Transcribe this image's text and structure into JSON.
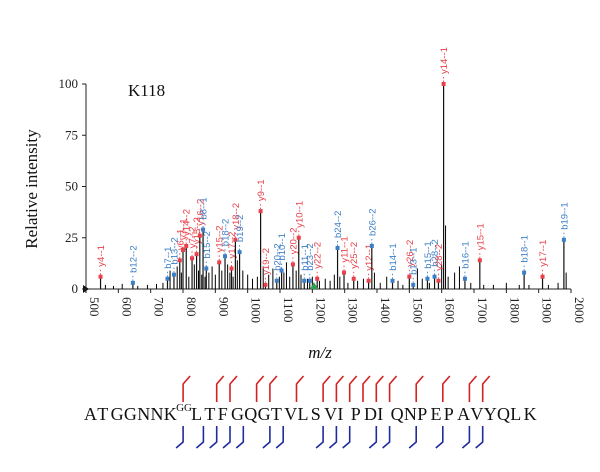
{
  "chart_data": {
    "type": "bar",
    "title": "K118",
    "xlabel": "m/z",
    "ylabel": "Relative intensity",
    "xlim": [
      500,
      2000
    ],
    "ylim": [
      0,
      100
    ],
    "xticks": [
      500,
      600,
      700,
      800,
      900,
      1000,
      1100,
      1200,
      1300,
      1400,
      1500,
      1600,
      1700,
      1800,
      1900,
      2000
    ],
    "yticks": [
      0,
      25,
      50,
      75,
      100
    ],
    "colors": {
      "y_ions": "#e8414b",
      "b_ions": "#3d7fc6",
      "unlabeled": "#000000",
      "precursor": "#2e9e4f",
      "cleavage_n": "#d32222",
      "cleavage_c": "#1f2c9c"
    },
    "peaks": [
      {
        "mz": 545,
        "intensity": 6,
        "label": "y4--1",
        "ion": "y"
      },
      {
        "mz": 645,
        "intensity": 3,
        "label": "b12--2",
        "ion": "b"
      },
      {
        "mz": 752,
        "intensity": 5,
        "label": "b7--1",
        "ion": "b"
      },
      {
        "mz": 772,
        "intensity": 7,
        "label": "b13--2",
        "ion": "b"
      },
      {
        "mz": 790,
        "intensity": 14,
        "label": "y6--1",
        "ion": "y"
      },
      {
        "mz": 800,
        "intensity": 19,
        "label": "y7--1",
        "ion": "y"
      },
      {
        "mz": 810,
        "intensity": 21,
        "label": "y14--2",
        "ion": "y"
      },
      {
        "mz": 828,
        "intensity": 15,
        "label": "y7--2",
        "ion": "y"
      },
      {
        "mz": 842,
        "intensity": 17,
        "label": "y15--2",
        "ion": "y"
      },
      {
        "mz": 852,
        "intensity": 26,
        "label": "y16--2",
        "ion": "y"
      },
      {
        "mz": 862,
        "intensity": 29,
        "label": "b8--1",
        "ion": "b"
      },
      {
        "mz": 872,
        "intensity": 10,
        "label": "b15--2",
        "ion": "b"
      },
      {
        "mz": 912,
        "intensity": 13,
        "label": "y15--2",
        "ion": "y"
      },
      {
        "mz": 930,
        "intensity": 16,
        "label": "b18--2",
        "ion": "b"
      },
      {
        "mz": 950,
        "intensity": 10,
        "label": "y17--2",
        "ion": "y"
      },
      {
        "mz": 962,
        "intensity": 24,
        "label": "y18--2",
        "ion": "y"
      },
      {
        "mz": 975,
        "intensity": 18,
        "label": "b19--2",
        "ion": "b"
      },
      {
        "mz": 1040,
        "intensity": 38,
        "label": "y9--1",
        "ion": "y"
      },
      {
        "mz": 1055,
        "intensity": 2,
        "label": "y19--2",
        "ion": "y"
      },
      {
        "mz": 1090,
        "intensity": 4,
        "label": "b20--2",
        "ion": "b"
      },
      {
        "mz": 1105,
        "intensity": 9,
        "label": "b10--1",
        "ion": "b"
      },
      {
        "mz": 1140,
        "intensity": 12,
        "label": "y20--2",
        "ion": "y"
      },
      {
        "mz": 1158,
        "intensity": 25,
        "label": "y10--1",
        "ion": "y"
      },
      {
        "mz": 1175,
        "intensity": 4,
        "label": "b11--1",
        "ion": "b"
      },
      {
        "mz": 1192,
        "intensity": 4,
        "label": "b23--2",
        "ion": "b"
      },
      {
        "mz": 1215,
        "intensity": 5,
        "label": "y22--2",
        "ion": "y"
      },
      {
        "mz": 1278,
        "intensity": 20,
        "label": "b24--2",
        "ion": "b"
      },
      {
        "mz": 1298,
        "intensity": 8,
        "label": "y11--1",
        "ion": "y"
      },
      {
        "mz": 1328,
        "intensity": 5,
        "label": "y25--2",
        "ion": "y"
      },
      {
        "mz": 1374,
        "intensity": 4,
        "label": "y12--1",
        "ion": "y"
      },
      {
        "mz": 1384,
        "intensity": 21,
        "label": "b26--2",
        "ion": "b"
      },
      {
        "mz": 1448,
        "intensity": 4,
        "label": "b14--1",
        "ion": "b"
      },
      {
        "mz": 1500,
        "intensity": 6,
        "label": "y26--2",
        "ion": "y"
      },
      {
        "mz": 1512,
        "intensity": 2,
        "label": "b13--1",
        "ion": "b"
      },
      {
        "mz": 1556,
        "intensity": 5,
        "label": "b15--1",
        "ion": "b"
      },
      {
        "mz": 1578,
        "intensity": 6,
        "label": "b28--2",
        "ion": "b"
      },
      {
        "mz": 1590,
        "intensity": 4,
        "label": "y28--2",
        "ion": "y"
      },
      {
        "mz": 1606,
        "intensity": 100,
        "label": "y14--1",
        "ion": "y"
      },
      {
        "mz": 1672,
        "intensity": 5,
        "label": "b16--1",
        "ion": "b"
      },
      {
        "mz": 1718,
        "intensity": 14,
        "label": "y15--1",
        "ion": "y"
      },
      {
        "mz": 1855,
        "intensity": 8,
        "label": "b18--1",
        "ion": "b"
      },
      {
        "mz": 1912,
        "intensity": 6,
        "label": "y17--1",
        "ion": "y"
      },
      {
        "mz": 1978,
        "intensity": 24,
        "label": "b19--1",
        "ion": "b"
      }
    ],
    "unlabeled_peaks": [
      [
        560,
        2
      ],
      [
        585,
        1.5
      ],
      [
        612,
        2.5
      ],
      [
        660,
        1.5
      ],
      [
        690,
        2
      ],
      [
        718,
        2.5
      ],
      [
        738,
        3
      ],
      [
        760,
        9
      ],
      [
        782,
        11
      ],
      [
        795,
        8
      ],
      [
        818,
        6
      ],
      [
        835,
        12
      ],
      [
        848,
        9
      ],
      [
        858,
        7
      ],
      [
        868,
        6
      ],
      [
        880,
        8
      ],
      [
        890,
        11
      ],
      [
        900,
        7
      ],
      [
        920,
        9
      ],
      [
        938,
        12
      ],
      [
        945,
        8
      ],
      [
        955,
        6
      ],
      [
        968,
        14
      ],
      [
        985,
        9
      ],
      [
        1000,
        7
      ],
      [
        1015,
        5
      ],
      [
        1030,
        6
      ],
      [
        1048,
        11
      ],
      [
        1065,
        7
      ],
      [
        1078,
        10
      ],
      [
        1098,
        6
      ],
      [
        1112,
        8
      ],
      [
        1120,
        13
      ],
      [
        1130,
        6
      ],
      [
        1150,
        9
      ],
      [
        1165,
        7
      ],
      [
        1185,
        5
      ],
      [
        1200,
        6
      ],
      [
        1222,
        4
      ],
      [
        1240,
        5
      ],
      [
        1255,
        4
      ],
      [
        1268,
        7
      ],
      [
        1285,
        6
      ],
      [
        1310,
        3
      ],
      [
        1340,
        4
      ],
      [
        1358,
        5
      ],
      [
        1392,
        8
      ],
      [
        1410,
        3
      ],
      [
        1430,
        6
      ],
      [
        1465,
        4
      ],
      [
        1480,
        2
      ],
      [
        1525,
        10
      ],
      [
        1540,
        5
      ],
      [
        1562,
        3
      ],
      [
        1600,
        12
      ],
      [
        1612,
        31
      ],
      [
        1620,
        6
      ],
      [
        1640,
        8
      ],
      [
        1655,
        11
      ],
      [
        1690,
        3
      ],
      [
        1730,
        2
      ],
      [
        1760,
        2
      ],
      [
        1800,
        3
      ],
      [
        1840,
        2
      ],
      [
        1870,
        2
      ],
      [
        1930,
        2
      ],
      [
        1960,
        3
      ],
      [
        1985,
        8
      ]
    ],
    "precursor_mz": 1205,
    "peptide": {
      "prefix": [
        "A",
        "T",
        "G",
        "G",
        "N",
        "N",
        "K"
      ],
      "modification": "GG",
      "suffix": [
        "L",
        "T",
        "F",
        "G",
        "Q",
        "G",
        "T",
        "V",
        "L",
        "S",
        "V",
        "I",
        "P",
        "D",
        "I",
        "Q",
        "N",
        "P",
        "E",
        "P",
        "A",
        "V",
        "Y",
        "Q",
        "L",
        "K"
      ],
      "n_term_cleavages_after": [
        7,
        9,
        10,
        12,
        13,
        15,
        17,
        18,
        19,
        20,
        21,
        22,
        24,
        26,
        28,
        29
      ],
      "c_term_cleavages_after": [
        7,
        8,
        9,
        10,
        11,
        13,
        14,
        17,
        18,
        19,
        21,
        22,
        24,
        26,
        28,
        29
      ]
    }
  }
}
